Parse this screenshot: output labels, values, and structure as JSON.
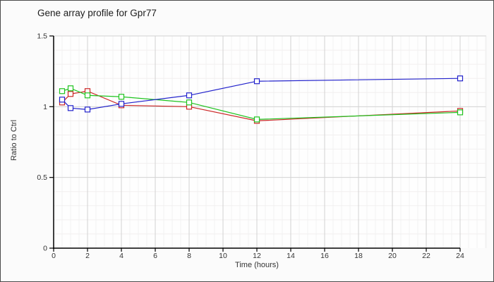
{
  "chart": {
    "title": "Gene array profile for Gpr77",
    "xlabel": "Time (hours)",
    "ylabel": "Ratio to Ctrl"
  },
  "chart_data": {
    "type": "line",
    "title": "Gene array profile for Gpr77",
    "xlabel": "Time (hours)",
    "ylabel": "Ratio to Ctrl",
    "x": [
      0.5,
      1,
      2,
      4,
      8,
      12,
      24
    ],
    "series": [
      {
        "name": "red-series",
        "color": "#cc2626",
        "values": [
          1.03,
          1.09,
          1.11,
          1.01,
          1.0,
          0.9,
          0.97
        ]
      },
      {
        "name": "green-series",
        "color": "#1fc41f",
        "values": [
          1.11,
          1.13,
          1.08,
          1.07,
          1.03,
          0.91,
          0.96
        ]
      },
      {
        "name": "blue-series",
        "color": "#2222cc",
        "values": [
          1.05,
          0.99,
          0.98,
          1.02,
          1.08,
          1.18,
          1.2
        ]
      }
    ],
    "xlim": [
      0,
      24
    ],
    "ylim": [
      0,
      1.5
    ],
    "xticks": [
      0,
      2,
      4,
      6,
      8,
      10,
      12,
      14,
      16,
      18,
      20,
      22,
      24
    ],
    "xtick_labels": [
      "0",
      "2",
      "4",
      "6",
      "8",
      "10",
      "12",
      "14",
      "16",
      "18",
      "20",
      "22",
      "24"
    ],
    "yticks": [
      0,
      0.5,
      1,
      1.5
    ],
    "ytick_labels": [
      "0",
      "0.5",
      "1",
      "1.5"
    ],
    "grid": {
      "x_minor_step": 0.5,
      "x_major_step": 2,
      "y_minor_step": 0.1,
      "y_major_step": 0.5,
      "on": true
    },
    "legend": "none",
    "marker": "open-square",
    "colors": {
      "grid_minor_h": "#f2efef",
      "grid_minor_v": "#f1f1f1",
      "grid_major": "#d2d2d2",
      "axis": "#000000",
      "plot_bg": "#fefefe",
      "page_bg": "#fbfbfb",
      "tick_text": "#333333"
    }
  }
}
